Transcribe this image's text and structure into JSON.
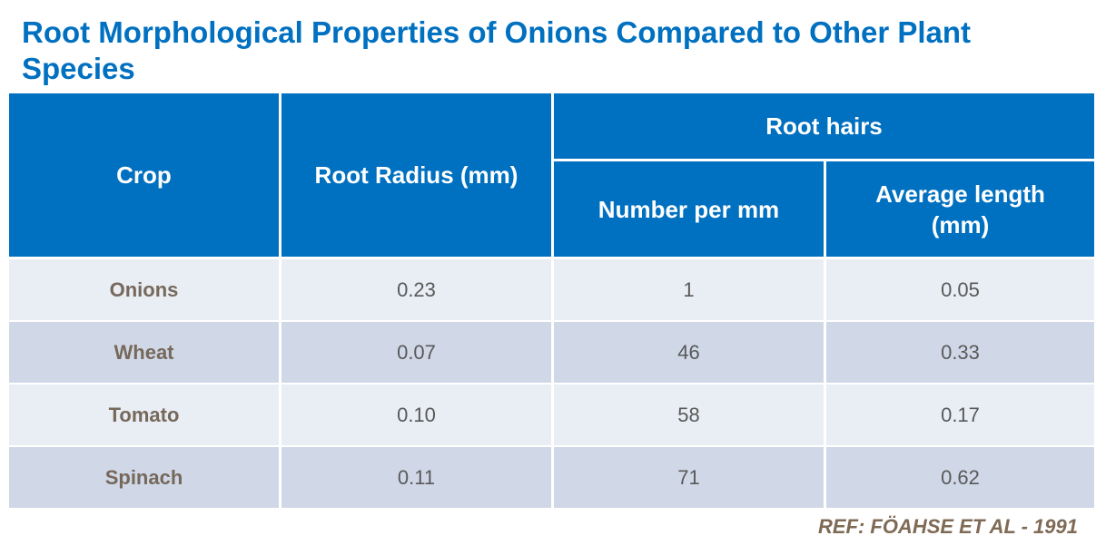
{
  "title": "Root Morphological Properties of Onions Compared to Other Plant Species",
  "table": {
    "headers": {
      "crop": "Crop",
      "root_radius": "Root Radius (mm)",
      "root_hairs": "Root hairs",
      "number_per_mm": "Number per mm",
      "average_length": "Average length (mm)"
    },
    "rows": [
      [
        "Onions",
        "0.23",
        "1",
        "0.05"
      ],
      [
        "Wheat",
        "0.07",
        "46",
        "0.33"
      ],
      [
        "Tomato",
        "0.10",
        "58",
        "0.17"
      ],
      [
        "Spinach",
        "0.11",
        "71",
        "0.62"
      ]
    ]
  },
  "reference": "REF: FÖAHSE ET AL - 1991"
}
